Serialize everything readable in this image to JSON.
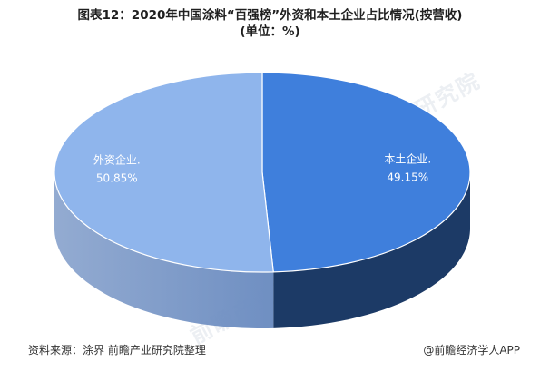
{
  "title_line1": "图表12：2020年中国涂料“百强榜”外资和本土企业占比情况(按营收)",
  "title_line2": "(单位：%)",
  "watermark": "前瞻产业研究院",
  "source": "资料来源：涂界 前瞻产业研究院整理",
  "credit": "@前瞻经济学人APP",
  "chart_data": {
    "type": "pie",
    "title": "图表12：2020年中国涂料“百强榜”外资和本土企业占比情况(按营收)(单位：%)",
    "unit": "%",
    "slices": [
      {
        "label": "本土企业",
        "value": 49.15,
        "display": "49.15%",
        "color": "#3f7fdc",
        "side_color": "#1c3a66"
      },
      {
        "label": "外资企业",
        "value": 50.85,
        "display": "50.85%",
        "color": "#8fb5ec",
        "side_color": "#6f8fc2"
      }
    ],
    "legend": "none",
    "style": "3d"
  }
}
